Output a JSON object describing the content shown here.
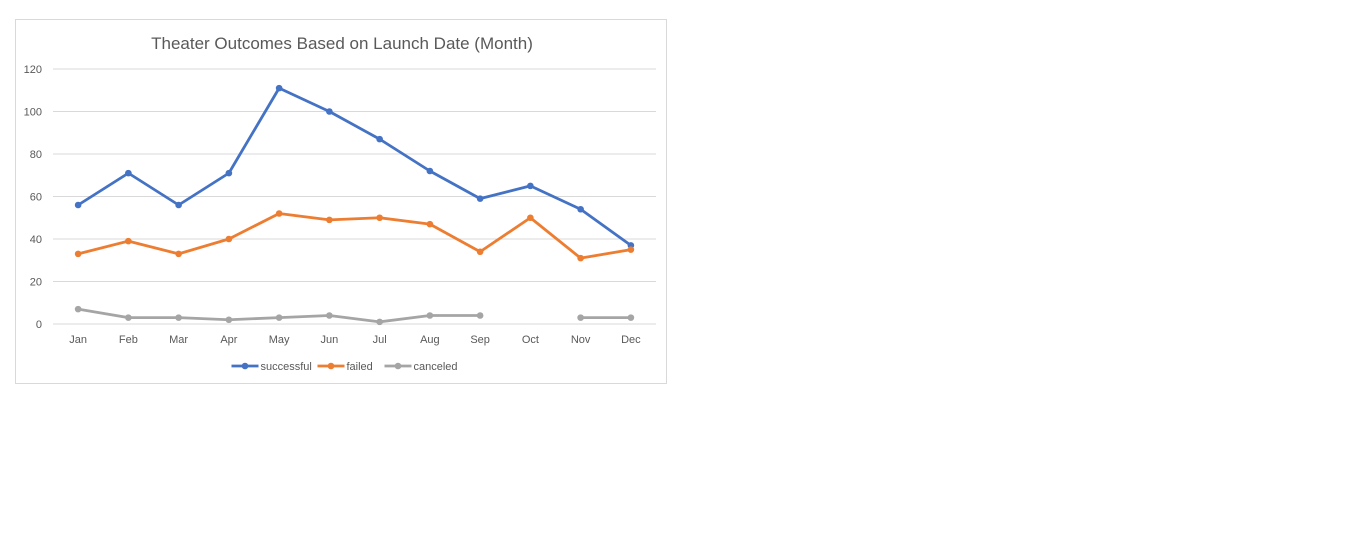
{
  "chart_data": {
    "type": "line",
    "title": "Theater Outcomes Based on Launch Date (Month)",
    "xlabel": "",
    "ylabel": "",
    "ylim": [
      0,
      120
    ],
    "yticks": [
      0,
      20,
      40,
      60,
      80,
      100,
      120
    ],
    "grid": true,
    "legend_position": "bottom",
    "categories": [
      "Jan",
      "Feb",
      "Mar",
      "Apr",
      "May",
      "Jun",
      "Jul",
      "Aug",
      "Sep",
      "Oct",
      "Nov",
      "Dec"
    ],
    "series": [
      {
        "name": "successful",
        "color": "#4472c4",
        "values": [
          56,
          71,
          56,
          71,
          111,
          100,
          87,
          72,
          59,
          65,
          54,
          37
        ]
      },
      {
        "name": "failed",
        "color": "#ed7d31",
        "values": [
          33,
          39,
          33,
          40,
          52,
          49,
          50,
          47,
          34,
          50,
          31,
          35
        ]
      },
      {
        "name": "canceled",
        "color": "#a5a5a5",
        "values": [
          7,
          3,
          3,
          2,
          3,
          4,
          1,
          4,
          4,
          null,
          3,
          3
        ]
      }
    ]
  }
}
